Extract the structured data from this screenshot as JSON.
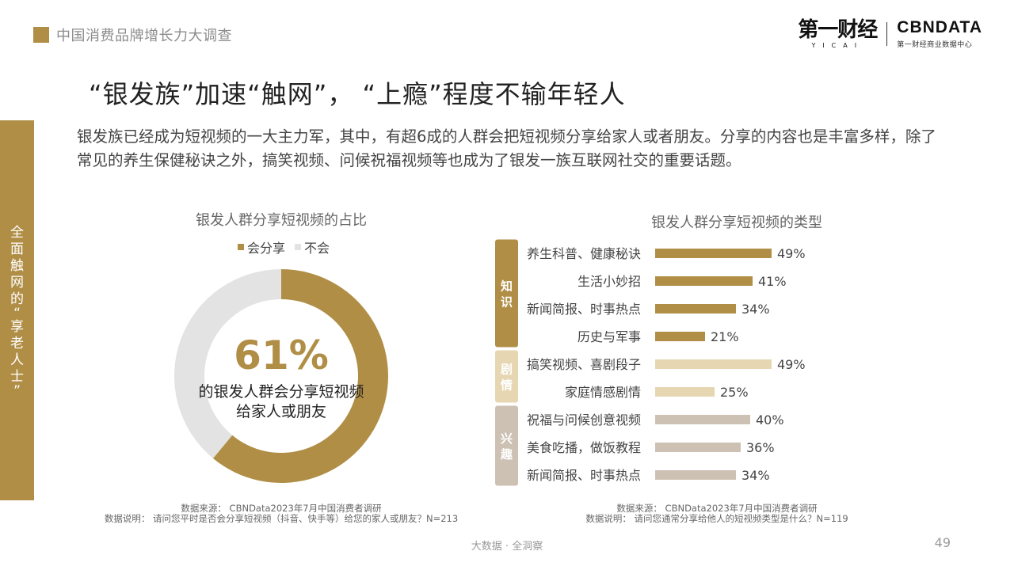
{
  "header": {
    "report_title": "中国消费品牌增长力大调查",
    "logo_cn": "第一财经",
    "logo_cn_sub": "YICAI",
    "logo_en": "CBNDATA",
    "logo_en_sub": "第一财经商业数据中心"
  },
  "sidebar": {
    "chars": [
      "全",
      "面",
      "触",
      "网",
      "的",
      "“",
      "享",
      "老",
      "人",
      "士",
      "”"
    ]
  },
  "page": {
    "title": "“银发族”加速“触网”， “上瘾”程度不输年轻人",
    "intro": "银发族已经成为短视频的一大主力军，其中，有超6成的人群会把短视频分享给家人或者朋友。分享的内容也是丰富多样，除了常见的养生保健秘诀之外，搞笑视频、问候祝福视频等也成为了银发一族互联网社交的重要话题。"
  },
  "colors": {
    "gold": "#b08e46",
    "light_gray": "#e3e3e3",
    "knowledge": "#b08e46",
    "drama": "#e6d7b2",
    "interest": "#cdc1b4"
  },
  "chart_data": [
    {
      "type": "pie",
      "title": "银发人群分享短视频的占比",
      "legend": [
        "会分享",
        "不会"
      ],
      "values": [
        61,
        39
      ],
      "center_value": "61%",
      "center_text": "的银发人群会分享短视频给家人或朋友",
      "source": "数据来源： CBNData2023年7月中国消费者调研",
      "note": "数据说明： 请问您平时是否会分享短视频（抖音、快手等）给您的家人或朋友？N=213"
    },
    {
      "type": "bar",
      "orientation": "horizontal",
      "title": "银发人群分享短视频的类型",
      "xlim": [
        0,
        100
      ],
      "groups": [
        {
          "name": "知识",
          "color": "#b08e46",
          "items": [
            {
              "label": "养生科普、健康秘诀",
              "value": 49
            },
            {
              "label": "生活小妙招",
              "value": 41
            },
            {
              "label": "新闻简报、时事热点",
              "value": 34
            },
            {
              "label": "历史与军事",
              "value": 21
            }
          ]
        },
        {
          "name": "剧情",
          "color": "#e6d7b2",
          "items": [
            {
              "label": "搞笑视频、喜剧段子",
              "value": 49
            },
            {
              "label": "家庭情感剧情",
              "value": 25
            }
          ]
        },
        {
          "name": "兴趣",
          "color": "#cdc1b4",
          "items": [
            {
              "label": "祝福与问候创意视频",
              "value": 40
            },
            {
              "label": "美食吃播，做饭教程",
              "value": 36
            },
            {
              "label": "新闻简报、时事热点",
              "value": 34
            }
          ]
        }
      ],
      "source": "数据来源： CBNData2023年7月中国消费者调研",
      "note": "数据说明： 请问您通常分享给他人的短视频类型是什么？N=119"
    }
  ],
  "footer": {
    "text": "大数据 · 全洞察",
    "page_number": "49"
  }
}
